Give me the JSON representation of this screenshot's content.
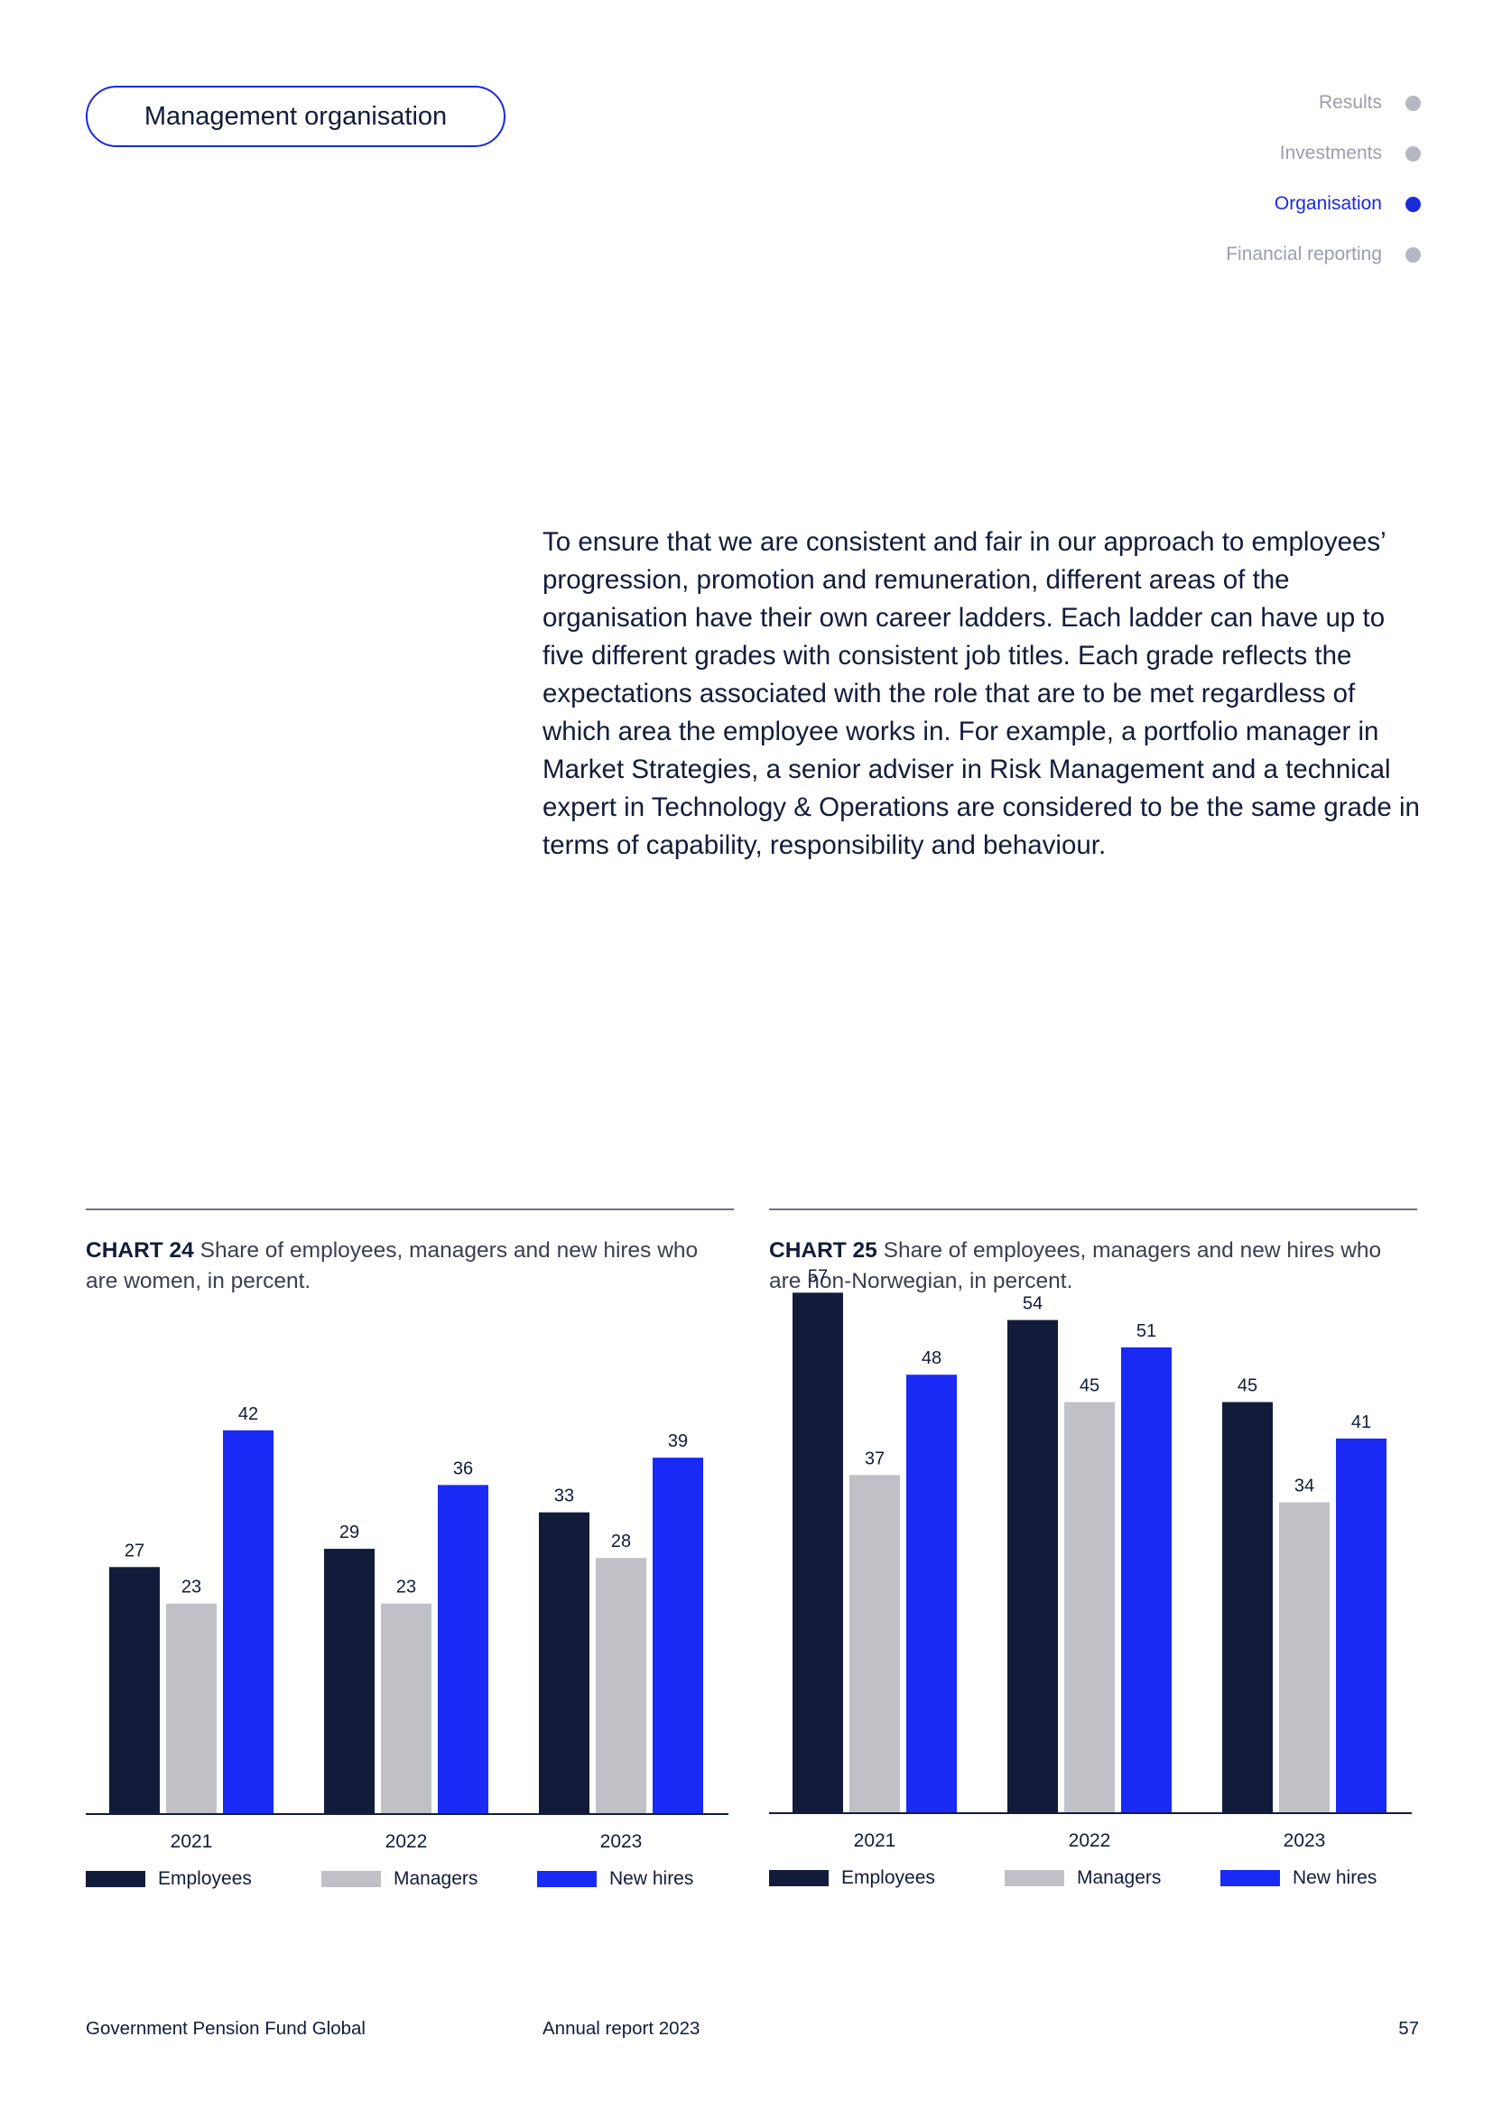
{
  "header": {
    "section_label": "Management organisation",
    "nav": [
      {
        "label": "Results",
        "active": false
      },
      {
        "label": "Investments",
        "active": false
      },
      {
        "label": "Organisation",
        "active": true
      },
      {
        "label": "Financial reporting",
        "active": false
      }
    ]
  },
  "body": {
    "paragraph": "To ensure that we are consistent and fair in our approach to employees’ progression, promotion and remuneration, different areas of the organisation have their own career ladders. Each ladder can have up to five different grades with consistent job titles. Each grade reflects the expectations associated with the role that are to be met regardless of which area the employee works in. For example, a portfolio manager in Market Strategies, a senior adviser in Risk Management and a technical expert in Technology & Operations are considered to be the same grade in terms of capability, responsibility and behaviour."
  },
  "colors": {
    "employees": "#121c3a",
    "managers": "#bfc1c6",
    "new_hires": "#1a2af5"
  },
  "chart_data": [
    {
      "type": "bar",
      "label": "CHART 24",
      "title": "Share of employees, managers and new hires who are women, in percent.",
      "categories": [
        "2021",
        "2022",
        "2023"
      ],
      "ylim": [
        0,
        60
      ],
      "series": [
        {
          "name": "Employees",
          "values": [
            27,
            29,
            33
          ]
        },
        {
          "name": "Managers",
          "values": [
            23,
            23,
            28
          ]
        },
        {
          "name": "New hires",
          "values": [
            42,
            36,
            39
          ]
        }
      ]
    },
    {
      "type": "bar",
      "label": "CHART 25",
      "title": "Share of employees, managers and new hires who are non-Norwegian, in percent.",
      "categories": [
        "2021",
        "2022",
        "2023"
      ],
      "ylim": [
        0,
        60
      ],
      "series": [
        {
          "name": "Employees",
          "values": [
            57,
            54,
            45
          ]
        },
        {
          "name": "Managers",
          "values": [
            37,
            45,
            34
          ]
        },
        {
          "name": "New hires",
          "values": [
            48,
            51,
            41
          ]
        }
      ]
    }
  ],
  "footer": {
    "org": "Government Pension Fund Global",
    "report": "Annual report 2023",
    "page": "57"
  }
}
